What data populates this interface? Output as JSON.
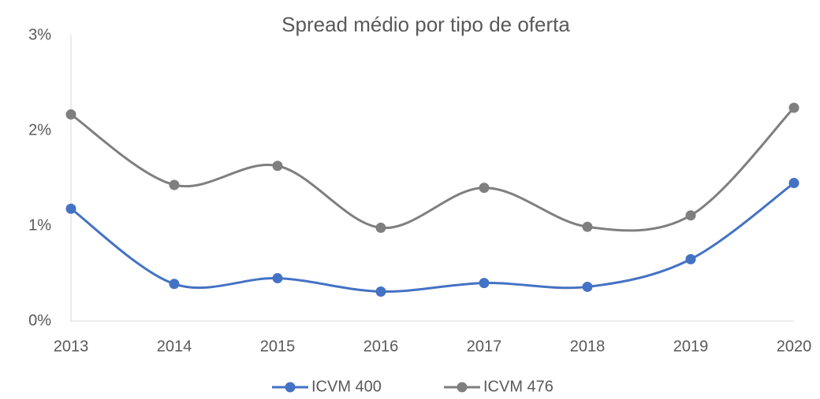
{
  "chart_data": {
    "type": "line",
    "title": "Spread médio por tipo de oferta",
    "categories": [
      "2013",
      "2014",
      "2015",
      "2016",
      "2017",
      "2018",
      "2019",
      "2020"
    ],
    "series": [
      {
        "name": "ICVM 400",
        "color": "#4472c4",
        "values": [
          1.18,
          0.39,
          0.45,
          0.31,
          0.4,
          0.36,
          0.65,
          1.45
        ]
      },
      {
        "name": "ICVM 476",
        "color": "#7f7f7f",
        "values": [
          2.17,
          1.43,
          1.63,
          0.98,
          1.4,
          0.99,
          1.11,
          2.24
        ]
      }
    ],
    "ylim": [
      0,
      3
    ],
    "yticks": [
      {
        "value": 0,
        "label": "0%"
      },
      {
        "value": 1,
        "label": "1%"
      },
      {
        "value": 2,
        "label": "2%"
      },
      {
        "value": 3,
        "label": "3%"
      }
    ],
    "smooth": true,
    "legend": "bottom"
  }
}
